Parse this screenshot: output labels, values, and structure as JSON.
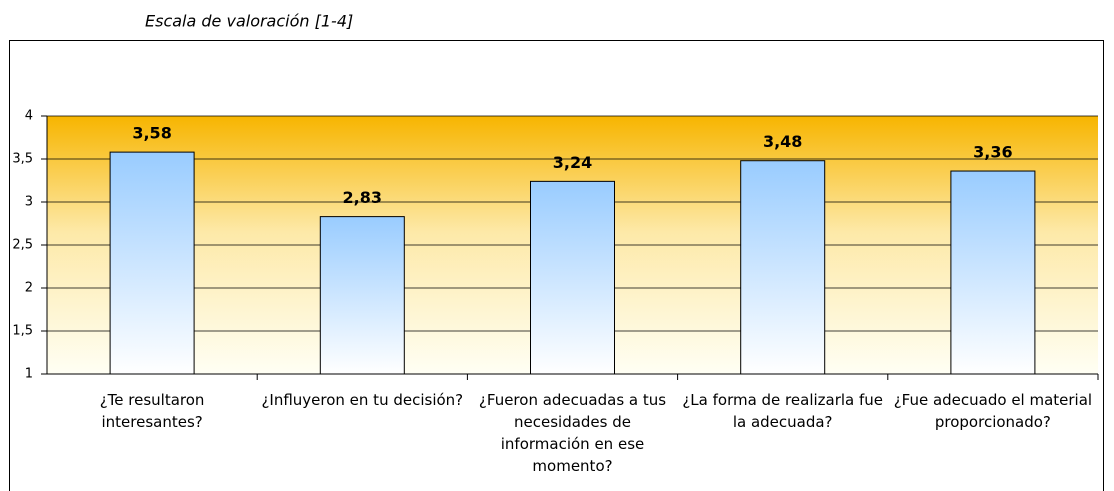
{
  "chart_data": {
    "type": "bar",
    "title": "Escala de valoración [1-4]",
    "categories": [
      "¿Te resultaron interesantes?",
      "¿Influyeron en tu decisión?",
      "¿Fueron adecuadas a tus necesidades de información en ese momento?",
      "¿La forma de realizarla fue la adecuada?",
      "¿Fue adecuado el material proporcionado?"
    ],
    "values": [
      3.58,
      2.83,
      3.24,
      3.48,
      3.36
    ],
    "value_labels": [
      "3,58",
      "2,83",
      "3,24",
      "3,48",
      "3,36"
    ],
    "color": "#99ccff",
    "ylim": [
      1,
      4
    ],
    "yticks": [
      1,
      {
        "value": 1.5,
        "label": "1,5"
      },
      2,
      {
        "value": 2.5,
        "label": "2,5"
      },
      3,
      {
        "value": 3.5,
        "label": "3,5"
      },
      4
    ],
    "grid": true
  }
}
